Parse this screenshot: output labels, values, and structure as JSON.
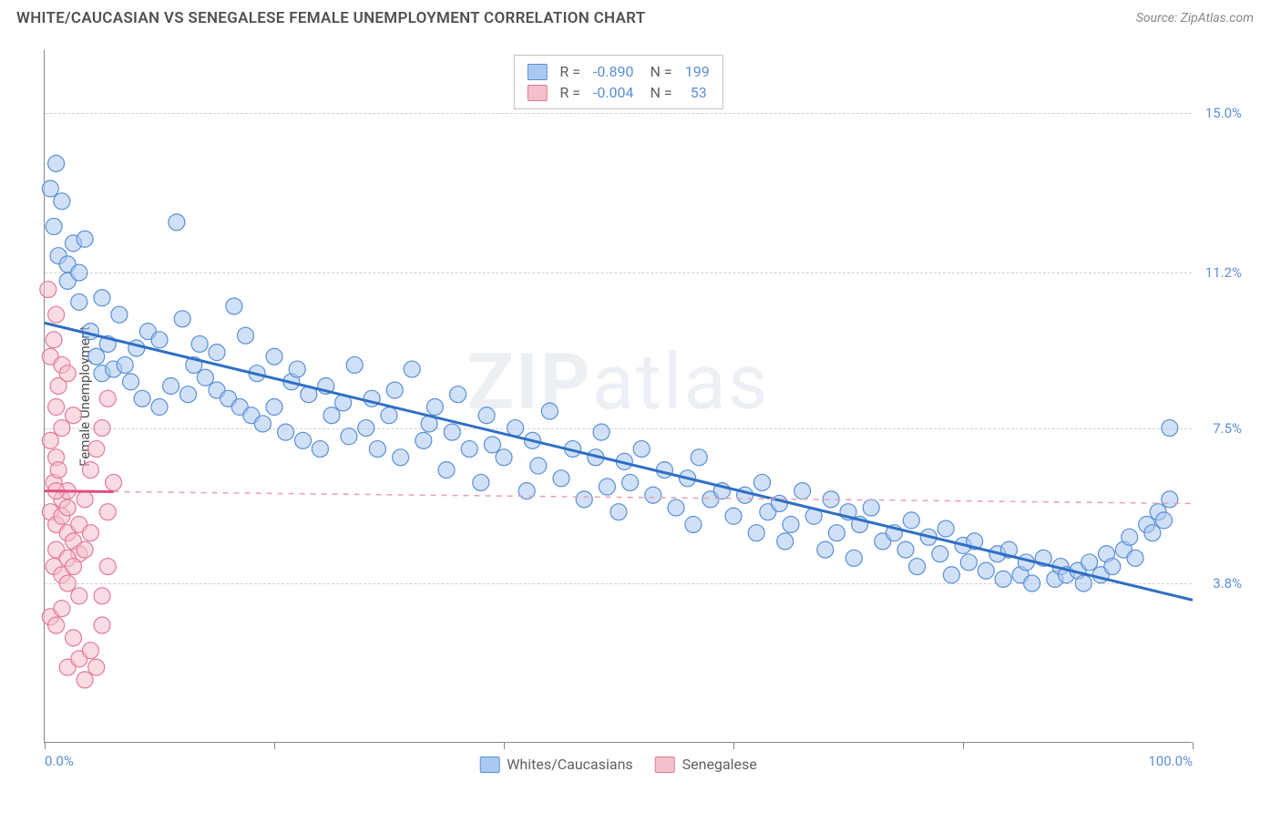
{
  "title": "WHITE/CAUCASIAN VS SENEGALESE FEMALE UNEMPLOYMENT CORRELATION CHART",
  "source": "Source: ZipAtlas.com",
  "watermark_a": "ZIP",
  "watermark_b": "atlas",
  "chart": {
    "type": "scatter",
    "ylabel": "Female Unemployment",
    "xlim": [
      0,
      100
    ],
    "ylim": [
      0,
      16.5
    ],
    "xtick_positions": [
      0,
      20,
      40,
      60,
      80,
      100
    ],
    "xtick_labels": {
      "0": "0.0%",
      "100": "100.0%"
    },
    "yticks": [
      {
        "v": 3.8,
        "label": "3.8%"
      },
      {
        "v": 7.5,
        "label": "7.5%"
      },
      {
        "v": 11.2,
        "label": "11.2%"
      },
      {
        "v": 15.0,
        "label": "15.0%"
      }
    ],
    "background_color": "#ffffff",
    "grid_color": "#d0d0d0",
    "marker_radius": 9,
    "marker_opacity": 0.55,
    "series": [
      {
        "name": "Whites/Caucasians",
        "color_fill": "#a9c9f0",
        "color_stroke": "#5b8fd6",
        "R": "-0.890",
        "N": "199",
        "trend": {
          "x1": 0,
          "y1": 10.0,
          "x2": 100,
          "y2": 3.4,
          "dash_after_x": 100
        },
        "points": [
          [
            0.5,
            13.2
          ],
          [
            0.8,
            12.3
          ],
          [
            1,
            13.8
          ],
          [
            1.2,
            11.6
          ],
          [
            1.5,
            12.9
          ],
          [
            2,
            11.0
          ],
          [
            2,
            11.4
          ],
          [
            2.5,
            11.9
          ],
          [
            3,
            11.2
          ],
          [
            3,
            10.5
          ],
          [
            3.5,
            12.0
          ],
          [
            4,
            9.8
          ],
          [
            4.5,
            9.2
          ],
          [
            5,
            8.8
          ],
          [
            5,
            10.6
          ],
          [
            5.5,
            9.5
          ],
          [
            6,
            8.9
          ],
          [
            6.5,
            10.2
          ],
          [
            7,
            9.0
          ],
          [
            7.5,
            8.6
          ],
          [
            8,
            9.4
          ],
          [
            8.5,
            8.2
          ],
          [
            9,
            9.8
          ],
          [
            10,
            8.0
          ],
          [
            10,
            9.6
          ],
          [
            11,
            8.5
          ],
          [
            11.5,
            12.4
          ],
          [
            12,
            10.1
          ],
          [
            12.5,
            8.3
          ],
          [
            13,
            9.0
          ],
          [
            13.5,
            9.5
          ],
          [
            14,
            8.7
          ],
          [
            15,
            8.4
          ],
          [
            15,
            9.3
          ],
          [
            16,
            8.2
          ],
          [
            16.5,
            10.4
          ],
          [
            17,
            8.0
          ],
          [
            17.5,
            9.7
          ],
          [
            18,
            7.8
          ],
          [
            18.5,
            8.8
          ],
          [
            19,
            7.6
          ],
          [
            20,
            9.2
          ],
          [
            20,
            8.0
          ],
          [
            21,
            7.4
          ],
          [
            21.5,
            8.6
          ],
          [
            22,
            8.9
          ],
          [
            22.5,
            7.2
          ],
          [
            23,
            8.3
          ],
          [
            24,
            7.0
          ],
          [
            24.5,
            8.5
          ],
          [
            25,
            7.8
          ],
          [
            26,
            8.1
          ],
          [
            26.5,
            7.3
          ],
          [
            27,
            9.0
          ],
          [
            28,
            7.5
          ],
          [
            28.5,
            8.2
          ],
          [
            29,
            7.0
          ],
          [
            30,
            7.8
          ],
          [
            30.5,
            8.4
          ],
          [
            31,
            6.8
          ],
          [
            32,
            8.9
          ],
          [
            33,
            7.2
          ],
          [
            33.5,
            7.6
          ],
          [
            34,
            8.0
          ],
          [
            35,
            6.5
          ],
          [
            35.5,
            7.4
          ],
          [
            36,
            8.3
          ],
          [
            37,
            7.0
          ],
          [
            38,
            6.2
          ],
          [
            38.5,
            7.8
          ],
          [
            39,
            7.1
          ],
          [
            40,
            6.8
          ],
          [
            41,
            7.5
          ],
          [
            42,
            6.0
          ],
          [
            42.5,
            7.2
          ],
          [
            43,
            6.6
          ],
          [
            44,
            7.9
          ],
          [
            45,
            6.3
          ],
          [
            46,
            7.0
          ],
          [
            47,
            5.8
          ],
          [
            48,
            6.8
          ],
          [
            48.5,
            7.4
          ],
          [
            49,
            6.1
          ],
          [
            50,
            5.5
          ],
          [
            50.5,
            6.7
          ],
          [
            51,
            6.2
          ],
          [
            52,
            7.0
          ],
          [
            53,
            5.9
          ],
          [
            54,
            6.5
          ],
          [
            55,
            5.6
          ],
          [
            56,
            6.3
          ],
          [
            56.5,
            5.2
          ],
          [
            57,
            6.8
          ],
          [
            58,
            5.8
          ],
          [
            59,
            6.0
          ],
          [
            60,
            5.4
          ],
          [
            61,
            5.9
          ],
          [
            62,
            5.0
          ],
          [
            62.5,
            6.2
          ],
          [
            63,
            5.5
          ],
          [
            64,
            5.7
          ],
          [
            64.5,
            4.8
          ],
          [
            65,
            5.2
          ],
          [
            66,
            6.0
          ],
          [
            67,
            5.4
          ],
          [
            68,
            4.6
          ],
          [
            68.5,
            5.8
          ],
          [
            69,
            5.0
          ],
          [
            70,
            5.5
          ],
          [
            70.5,
            4.4
          ],
          [
            71,
            5.2
          ],
          [
            72,
            5.6
          ],
          [
            73,
            4.8
          ],
          [
            74,
            5.0
          ],
          [
            75,
            4.6
          ],
          [
            75.5,
            5.3
          ],
          [
            76,
            4.2
          ],
          [
            77,
            4.9
          ],
          [
            78,
            4.5
          ],
          [
            78.5,
            5.1
          ],
          [
            79,
            4.0
          ],
          [
            80,
            4.7
          ],
          [
            80.5,
            4.3
          ],
          [
            81,
            4.8
          ],
          [
            82,
            4.1
          ],
          [
            83,
            4.5
          ],
          [
            83.5,
            3.9
          ],
          [
            84,
            4.6
          ],
          [
            85,
            4.0
          ],
          [
            85.5,
            4.3
          ],
          [
            86,
            3.8
          ],
          [
            87,
            4.4
          ],
          [
            88,
            3.9
          ],
          [
            88.5,
            4.2
          ],
          [
            89,
            4.0
          ],
          [
            90,
            4.1
          ],
          [
            90.5,
            3.8
          ],
          [
            91,
            4.3
          ],
          [
            92,
            4.0
          ],
          [
            92.5,
            4.5
          ],
          [
            93,
            4.2
          ],
          [
            94,
            4.6
          ],
          [
            94.5,
            4.9
          ],
          [
            95,
            4.4
          ],
          [
            96,
            5.2
          ],
          [
            96.5,
            5.0
          ],
          [
            97,
            5.5
          ],
          [
            97.5,
            5.3
          ],
          [
            98,
            5.8
          ],
          [
            98,
            7.5
          ]
        ]
      },
      {
        "name": "Senegalese",
        "color_fill": "#f4c0cc",
        "color_stroke": "#e47a9a",
        "R": "-0.004",
        "N": "53",
        "trend": {
          "x1": 0,
          "y1": 6.0,
          "x2": 100,
          "y2": 5.7,
          "solid_until_x": 6
        },
        "points": [
          [
            0.3,
            10.8
          ],
          [
            0.5,
            9.2
          ],
          [
            1,
            10.2
          ],
          [
            1,
            8.0
          ],
          [
            0.8,
            9.6
          ],
          [
            1.2,
            8.5
          ],
          [
            1.5,
            9.0
          ],
          [
            0.5,
            7.2
          ],
          [
            1,
            6.8
          ],
          [
            1.5,
            7.5
          ],
          [
            2,
            8.8
          ],
          [
            0.8,
            6.2
          ],
          [
            1.2,
            6.5
          ],
          [
            1.5,
            5.8
          ],
          [
            2,
            6.0
          ],
          [
            2.5,
            7.8
          ],
          [
            0.5,
            5.5
          ],
          [
            1,
            5.2
          ],
          [
            1,
            6.0
          ],
          [
            1.5,
            5.4
          ],
          [
            2,
            5.0
          ],
          [
            2,
            5.6
          ],
          [
            2.5,
            4.8
          ],
          [
            3,
            5.2
          ],
          [
            3,
            4.5
          ],
          [
            3.5,
            5.8
          ],
          [
            0.8,
            4.2
          ],
          [
            1,
            4.6
          ],
          [
            1.5,
            4.0
          ],
          [
            2,
            4.4
          ],
          [
            2,
            3.8
          ],
          [
            2.5,
            4.2
          ],
          [
            3,
            3.5
          ],
          [
            3.5,
            4.6
          ],
          [
            4,
            5.0
          ],
          [
            0.5,
            3.0
          ],
          [
            1,
            2.8
          ],
          [
            1.5,
            3.2
          ],
          [
            2,
            1.8
          ],
          [
            2.5,
            2.5
          ],
          [
            3,
            2.0
          ],
          [
            3.5,
            1.5
          ],
          [
            4,
            2.2
          ],
          [
            4.5,
            1.8
          ],
          [
            5,
            2.8
          ],
          [
            5,
            3.5
          ],
          [
            5.5,
            4.2
          ],
          [
            5.5,
            5.5
          ],
          [
            6,
            6.2
          ],
          [
            4,
            6.5
          ],
          [
            4.5,
            7.0
          ],
          [
            5,
            7.5
          ],
          [
            5.5,
            8.2
          ]
        ]
      }
    ]
  },
  "legend": {
    "label_a": "Whites/Caucasians",
    "label_b": "Senegalese"
  }
}
